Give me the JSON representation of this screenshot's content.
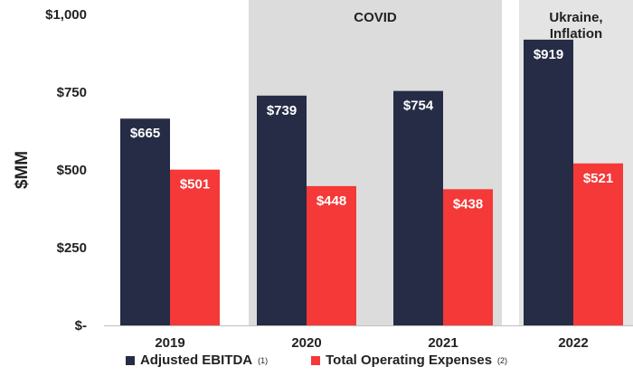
{
  "chart_data": {
    "type": "bar",
    "ylabel": "$MM",
    "ylim": [
      0,
      1000
    ],
    "yticks": [
      0,
      250,
      500,
      750,
      1000
    ],
    "ytick_labels": [
      "$-",
      "$250",
      "$500",
      "$750",
      "$1,000"
    ],
    "categories": [
      "2019",
      "2020",
      "2021",
      "2022"
    ],
    "series": [
      {
        "name": "Adjusted EBITDA",
        "superscript": "(1)",
        "color": "#262c45",
        "values": [
          665,
          739,
          754,
          919
        ],
        "labels": [
          "$665",
          "$739",
          "$754",
          "$919"
        ]
      },
      {
        "name": "Total Operating Expenses",
        "superscript": "(2)",
        "color": "#f53838",
        "values": [
          501,
          448,
          438,
          521
        ],
        "labels": [
          "$501",
          "$448",
          "$438",
          "$521"
        ]
      }
    ],
    "regions": [
      {
        "label": "COVID",
        "categories": [
          "2020",
          "2021"
        ],
        "color": "#dcdcdc"
      },
      {
        "label": "Ukraine,\nInflation",
        "categories": [
          "2022"
        ],
        "color": "#e4e4e4"
      }
    ],
    "legend_position": "bottom",
    "grid": false
  }
}
